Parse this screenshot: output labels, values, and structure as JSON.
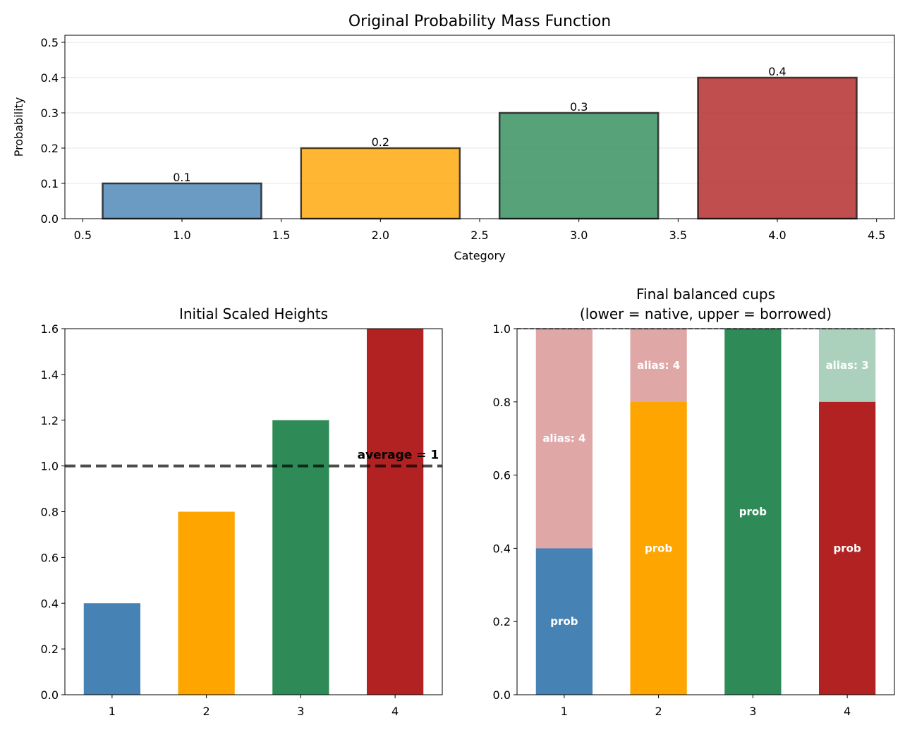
{
  "chart_data": [
    {
      "type": "bar",
      "title": "Original Probability Mass Function",
      "xlabel": "Category",
      "ylabel": "Probability",
      "x": [
        1,
        2,
        3,
        4
      ],
      "values": [
        0.1,
        0.2,
        0.3,
        0.4
      ],
      "data_labels": [
        "0.1",
        "0.2",
        "0.3",
        "0.4"
      ],
      "colors": [
        "#4682b4",
        "#ffa500",
        "#2e8b57",
        "#b22222"
      ],
      "xlim": [
        0.41,
        4.59
      ],
      "ylim": [
        0,
        0.52
      ],
      "xticks": [
        "0.5",
        "1.0",
        "1.5",
        "2.0",
        "2.5",
        "3.0",
        "3.5",
        "4.0",
        "4.5"
      ],
      "yticks": [
        "0.0",
        "0.1",
        "0.2",
        "0.3",
        "0.4",
        "0.5"
      ],
      "grid": true
    },
    {
      "type": "bar",
      "title": "Initial Scaled Heights",
      "categories": [
        "1",
        "2",
        "3",
        "4"
      ],
      "values": [
        0.4,
        0.8,
        1.2,
        1.6
      ],
      "colors": [
        "#4682b4",
        "#ffa500",
        "#2e8b57",
        "#b22222"
      ],
      "ylim": [
        0,
        1.6
      ],
      "yticks": [
        "0.0",
        "0.2",
        "0.4",
        "0.6",
        "0.8",
        "1.0",
        "1.2",
        "1.4",
        "1.6"
      ],
      "reference_line": {
        "value": 1.0,
        "label": "average = 1"
      },
      "grid": false
    },
    {
      "type": "bar",
      "title": "Final balanced cups",
      "subtitle": "(lower = native, upper = borrowed)",
      "categories": [
        "1",
        "2",
        "3",
        "4"
      ],
      "series": [
        {
          "name": "prob",
          "values": [
            0.4,
            0.8,
            1.0,
            0.8
          ],
          "labels": [
            "prob",
            "prob",
            "prob",
            "prob"
          ]
        },
        {
          "name": "alias",
          "values": [
            0.6,
            0.2,
            0.0,
            0.2
          ],
          "labels": [
            "alias: 4",
            "alias: 4",
            "",
            "alias: 3"
          ],
          "alias_of": [
            4,
            4,
            null,
            3
          ]
        }
      ],
      "colors": [
        "#4682b4",
        "#ffa500",
        "#2e8b57",
        "#b22222"
      ],
      "ylim": [
        0,
        1.0
      ],
      "yticks": [
        "0.0",
        "0.2",
        "0.4",
        "0.6",
        "0.8",
        "1.0"
      ],
      "reference_line": {
        "value": 1.0
      },
      "grid": false
    }
  ]
}
